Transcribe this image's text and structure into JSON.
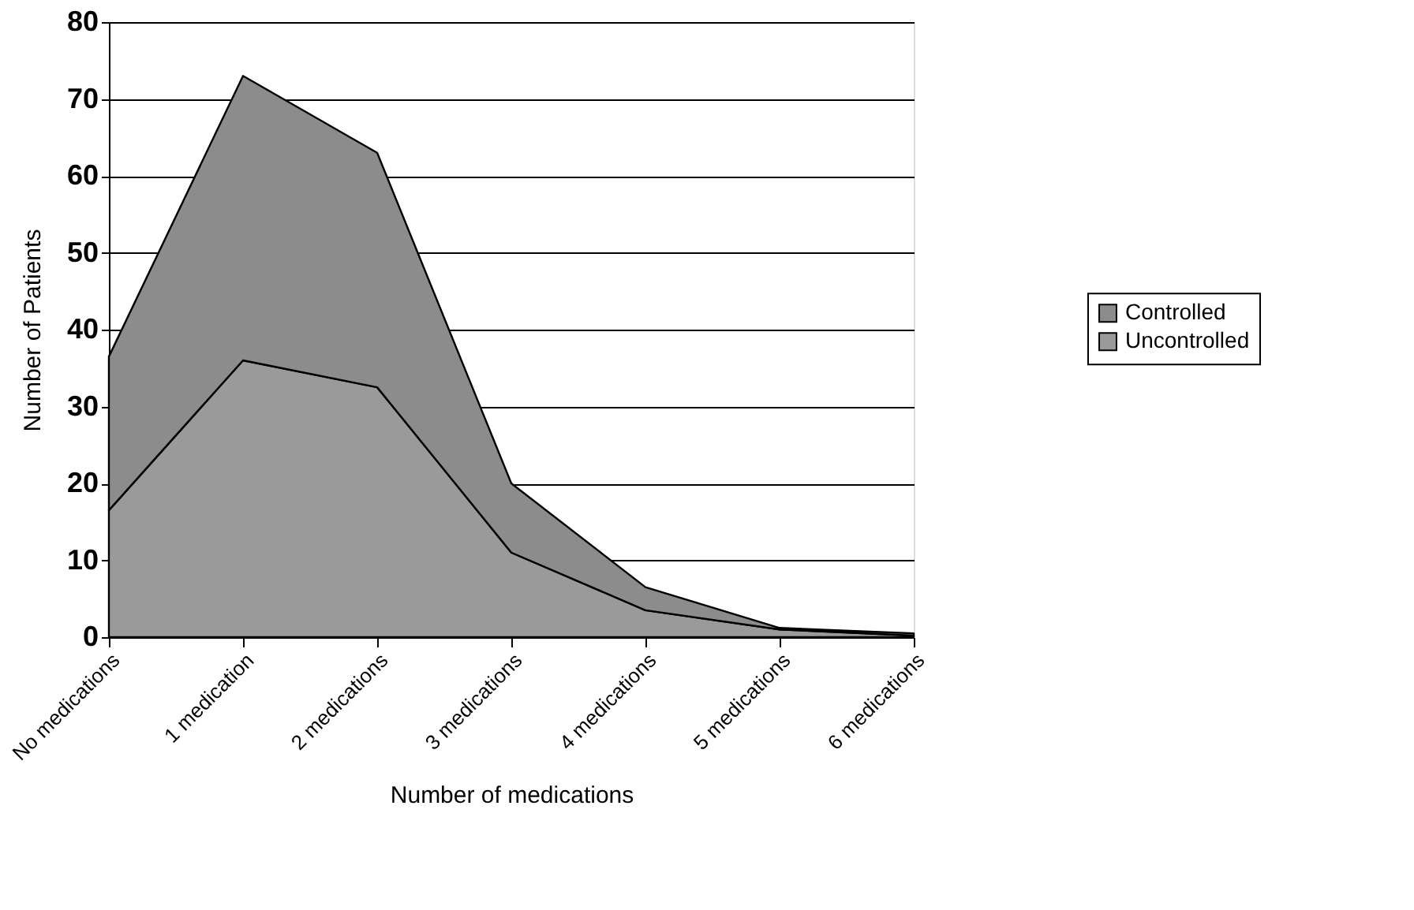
{
  "chart_data": {
    "type": "area",
    "stacked": true,
    "xlabel": "Number of medications",
    "ylabel": "Number of Patients",
    "categories": [
      "No medications",
      "1 medication",
      "2 medications",
      "3 medications",
      "4 medications",
      "5 medications",
      "6 medications"
    ],
    "series": [
      {
        "name": "Uncontrolled",
        "color": "#9a9a9a",
        "values": [
          16.5,
          36,
          32.5,
          11,
          3.5,
          1,
          0.2
        ]
      },
      {
        "name": "Controlled",
        "color": "#8c8c8c",
        "values": [
          20,
          37,
          30.5,
          9,
          3,
          0.2,
          0.3
        ]
      }
    ],
    "ylim": [
      0,
      80
    ],
    "yticks": [
      0,
      10,
      20,
      30,
      40,
      50,
      60,
      70,
      80
    ],
    "grid": "y",
    "legend": "right"
  }
}
